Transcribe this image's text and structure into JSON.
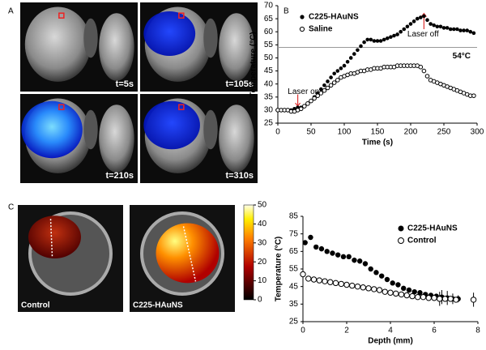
{
  "panel_labels": [
    "A",
    "B",
    "C"
  ],
  "mri_times": [
    "t=5s",
    "t=105s",
    "t=210s",
    "t=310s"
  ],
  "mri_groups": [
    "Control",
    "C225-HAuNS"
  ],
  "colorbar": {
    "lim": [
      0,
      50
    ],
    "ticks": [
      0,
      10,
      20,
      30,
      40,
      50
    ]
  },
  "chart_data": [
    {
      "type": "scatter",
      "x_label": "Time (s)",
      "y_label": "Temperature (°C)",
      "xlim": [
        0,
        300
      ],
      "xticks": [
        0,
        50,
        100,
        150,
        200,
        250,
        300
      ],
      "ylim": [
        25,
        70
      ],
      "yticks": [
        25,
        30,
        35,
        40,
        45,
        50,
        55,
        60,
        65,
        70
      ],
      "legend": "upper left",
      "grid": false,
      "reference_line": {
        "value": 54,
        "label": "54°C"
      },
      "annotations": [
        "Laser on",
        "Laser off"
      ],
      "x": [
        0,
        5,
        10,
        15,
        20,
        25,
        30,
        35,
        40,
        45,
        50,
        55,
        60,
        65,
        70,
        75,
        80,
        85,
        90,
        95,
        100,
        105,
        110,
        115,
        120,
        125,
        130,
        135,
        140,
        145,
        150,
        155,
        160,
        165,
        170,
        175,
        180,
        185,
        190,
        195,
        200,
        205,
        210,
        215,
        220,
        225,
        230,
        235,
        240,
        245,
        250,
        255,
        260,
        265,
        270,
        275,
        280,
        285,
        290,
        295
      ],
      "series": [
        {
          "name": "C225-HAuNS",
          "color": "#000000",
          "marker": "filled",
          "values": [
            30,
            30,
            30,
            30,
            30,
            30.5,
            31,
            31,
            31.5,
            32.5,
            33.5,
            35,
            36.5,
            38,
            39.5,
            41,
            42.5,
            44,
            45,
            46,
            47,
            48.5,
            50,
            51.5,
            53,
            54.5,
            56,
            57,
            57,
            56.5,
            56.5,
            56.5,
            57,
            57.5,
            58,
            58.5,
            59,
            60,
            61,
            62,
            63,
            64,
            65,
            65.5,
            66,
            64.5,
            63,
            62.5,
            62,
            62,
            61.5,
            61.5,
            61,
            61,
            61,
            60.5,
            60.5,
            60.5,
            60,
            59.5
          ]
        },
        {
          "name": "Saline",
          "color": "#000000",
          "marker": "open",
          "values": [
            30,
            30,
            30,
            30,
            29.5,
            29.5,
            30,
            30.5,
            31.5,
            32.5,
            33.5,
            34.5,
            35.5,
            36.5,
            37.5,
            38.5,
            39.5,
            40.5,
            41.5,
            42.5,
            43,
            43.5,
            44,
            44,
            44.5,
            45,
            45,
            45.5,
            45.5,
            46,
            46,
            46,
            46.5,
            46.5,
            46.5,
            46.5,
            47,
            47,
            47,
            47,
            47,
            47,
            47,
            46.5,
            45,
            43,
            41.5,
            41,
            40.5,
            40,
            39.5,
            39,
            38.5,
            38,
            37.5,
            37,
            36.5,
            36,
            35.5,
            35.5
          ]
        }
      ]
    },
    {
      "type": "scatter",
      "x_label": "Depth (mm)",
      "y_label": "Temperature (°C)",
      "xlim": [
        0,
        8
      ],
      "xticks": [
        0,
        2,
        4,
        6,
        8
      ],
      "ylim": [
        25,
        85
      ],
      "yticks": [
        25,
        35,
        45,
        55,
        65,
        75,
        85
      ],
      "legend": "upper right",
      "grid": false,
      "series": [
        {
          "name": "C225-HAuNS",
          "color": "#000000",
          "marker": "filled",
          "x": [
            0.1,
            0.35,
            0.6,
            0.85,
            1.1,
            1.35,
            1.6,
            1.85,
            2.1,
            2.35,
            2.6,
            2.85,
            3.1,
            3.35,
            3.6,
            3.85,
            4.1,
            4.35,
            4.6,
            4.85,
            5.1,
            5.35,
            5.6,
            5.85,
            6.1,
            6.35,
            6.6,
            6.85,
            7.1
          ],
          "values": [
            70,
            73,
            67.5,
            66.5,
            65,
            64,
            63,
            62,
            62,
            60,
            59.5,
            58,
            55,
            53,
            51,
            49,
            47,
            46,
            44,
            43,
            42,
            41.5,
            40.5,
            40,
            39.5,
            39,
            38.5,
            38,
            38
          ],
          "errors": [
            1,
            1,
            1,
            1.5,
            1,
            1,
            1,
            1,
            1,
            1.5,
            1,
            1,
            1,
            1,
            1,
            1,
            1,
            1,
            1,
            1,
            1,
            1,
            1,
            1,
            1,
            4,
            4,
            3,
            2
          ]
        },
        {
          "name": "Control",
          "color": "#000000",
          "marker": "open",
          "x": [
            0,
            0.25,
            0.5,
            0.75,
            1,
            1.25,
            1.5,
            1.75,
            2,
            2.25,
            2.5,
            2.75,
            3,
            3.25,
            3.5,
            3.75,
            4,
            4.25,
            4.5,
            4.75,
            5,
            5.25,
            5.5,
            5.75,
            6,
            6.25,
            6.5,
            6.75,
            7,
            7.8
          ],
          "values": [
            52,
            49.5,
            49,
            48.5,
            48,
            47.5,
            47,
            46.5,
            46,
            45.5,
            45,
            44.5,
            44,
            43.5,
            43,
            42,
            41.5,
            41,
            40.5,
            40,
            39.5,
            39,
            39,
            38.5,
            38.5,
            38,
            38,
            38,
            37.5,
            37.5
          ],
          "errors": [
            2,
            0.5,
            0.5,
            0.5,
            0.5,
            0.5,
            0.5,
            0.5,
            0.5,
            0.5,
            0.5,
            0.5,
            0.5,
            0.5,
            0.5,
            0.5,
            0.5,
            0.5,
            0.5,
            0.5,
            0.5,
            0.5,
            0.5,
            0.5,
            0.5,
            4,
            1,
            1,
            1,
            4
          ]
        }
      ]
    }
  ]
}
